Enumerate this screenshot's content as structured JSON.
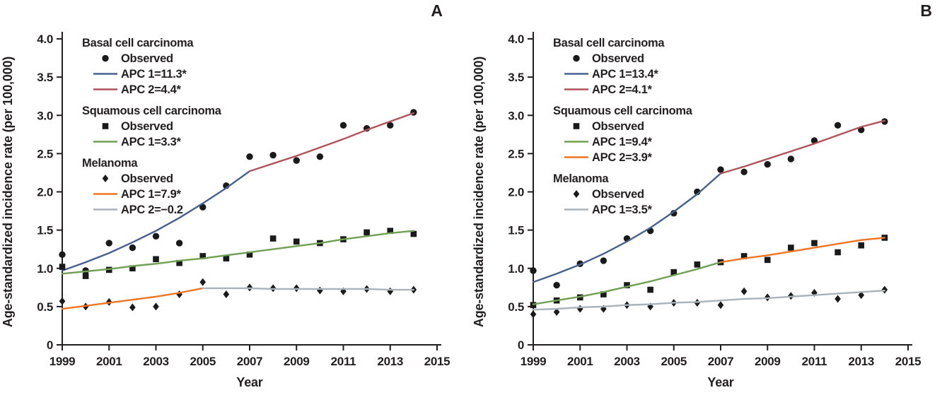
{
  "colors": {
    "text": "#231f20",
    "marker": "#1a1a1a",
    "bcc_apc1_blue": "#46618f",
    "bcc_apc2_red": "#b2525a",
    "scc_green": "#6fa053",
    "orange": "#ef7522",
    "gray": "#a9b3ba"
  },
  "chart_data": [
    {
      "type": "line",
      "panel_label": "A",
      "xlabel": "Year",
      "ylabel": "Age-standardized incidence rate (per 100,000)",
      "xlim": [
        1999,
        2015
      ],
      "ylim": [
        0,
        4.0
      ],
      "x_ticks": [
        1999,
        2001,
        2003,
        2005,
        2007,
        2009,
        2011,
        2013,
        2015
      ],
      "y_ticks": [
        0,
        0.5,
        1.0,
        1.5,
        2.0,
        2.5,
        3.0,
        3.5,
        4.0
      ],
      "grid": false,
      "legend_position": "top-left",
      "series": [
        {
          "name": "Basal cell carcinoma Observed",
          "type": "scatter",
          "marker": "circle",
          "color": "#1a1a1a",
          "x": [
            1999,
            2000,
            2001,
            2002,
            2003,
            2004,
            2005,
            2006,
            2007,
            2008,
            2009,
            2010,
            2011,
            2012,
            2013,
            2014
          ],
          "y": [
            1.18,
            0.97,
            1.33,
            1.27,
            1.42,
            1.33,
            1.8,
            2.08,
            2.46,
            2.48,
            2.41,
            2.46,
            2.87,
            2.83,
            2.87,
            3.04
          ]
        },
        {
          "name": "Basal cell carcinoma APC 1=11.3*",
          "type": "line",
          "color": "#46618f",
          "x": [
            1999,
            2000,
            2001,
            2002,
            2003,
            2004,
            2005,
            2006,
            2007
          ],
          "y": [
            0.97,
            1.08,
            1.2,
            1.34,
            1.49,
            1.66,
            1.85,
            2.05,
            2.27
          ]
        },
        {
          "name": "Basal cell carcinoma APC 2=4.4*",
          "type": "line",
          "color": "#b2525a",
          "x": [
            2007,
            2008,
            2009,
            2010,
            2011,
            2012,
            2013,
            2014
          ],
          "y": [
            2.27,
            2.37,
            2.47,
            2.58,
            2.69,
            2.81,
            2.92,
            3.03
          ]
        },
        {
          "name": "Squamous cell carcinoma Observed",
          "type": "scatter",
          "marker": "square",
          "color": "#1a1a1a",
          "x": [
            1999,
            2000,
            2001,
            2002,
            2003,
            2004,
            2005,
            2006,
            2007,
            2008,
            2009,
            2010,
            2011,
            2012,
            2013,
            2014
          ],
          "y": [
            1.02,
            0.9,
            0.98,
            1.0,
            1.12,
            1.07,
            1.16,
            1.13,
            1.18,
            1.39,
            1.35,
            1.33,
            1.38,
            1.47,
            1.49,
            1.45
          ]
        },
        {
          "name": "Squamous cell carcinoma APC 1=3.3*",
          "type": "line",
          "color": "#6fa053",
          "x": [
            1999,
            2000,
            2001,
            2002,
            2003,
            2004,
            2005,
            2006,
            2007,
            2008,
            2009,
            2010,
            2011,
            2012,
            2013,
            2014
          ],
          "y": [
            0.93,
            0.96,
            0.99,
            1.03,
            1.06,
            1.1,
            1.13,
            1.17,
            1.21,
            1.25,
            1.29,
            1.33,
            1.38,
            1.42,
            1.46,
            1.49
          ]
        },
        {
          "name": "Melanoma Observed",
          "type": "scatter",
          "marker": "diamond",
          "color": "#1a1a1a",
          "x": [
            1999,
            2000,
            2001,
            2002,
            2003,
            2004,
            2005,
            2006,
            2007,
            2008,
            2009,
            2010,
            2011,
            2012,
            2013,
            2014
          ],
          "y": [
            0.57,
            0.5,
            0.56,
            0.49,
            0.5,
            0.66,
            0.82,
            0.66,
            0.75,
            0.74,
            0.74,
            0.71,
            0.7,
            0.73,
            0.7,
            0.72
          ]
        },
        {
          "name": "Melanoma APC 1=7.9*",
          "type": "line",
          "color": "#ef7522",
          "x": [
            1999,
            2000,
            2001,
            2002,
            2003,
            2004,
            2005
          ],
          "y": [
            0.47,
            0.51,
            0.55,
            0.59,
            0.63,
            0.68,
            0.74
          ]
        },
        {
          "name": "Melanoma APC 2=−0.2",
          "type": "line",
          "color": "#a9b3ba",
          "x": [
            2005,
            2006,
            2007,
            2008,
            2009,
            2010,
            2011,
            2012,
            2013,
            2014
          ],
          "y": [
            0.74,
            0.74,
            0.74,
            0.73,
            0.73,
            0.73,
            0.73,
            0.73,
            0.72,
            0.72
          ]
        }
      ],
      "legend": [
        {
          "title": "Basal cell carcinoma",
          "items": [
            {
              "marker": "circle",
              "label": "Observed"
            },
            {
              "line": "#46618f",
              "label": "APC 1=11.3*"
            },
            {
              "line": "#b2525a",
              "label": "APC 2=4.4*"
            }
          ]
        },
        {
          "title": "Squamous cell carcinoma",
          "items": [
            {
              "marker": "square",
              "label": "Observed"
            },
            {
              "line": "#6fa053",
              "label": "APC 1=3.3*"
            }
          ]
        },
        {
          "title": "Melanoma",
          "items": [
            {
              "marker": "diamond",
              "label": "Observed"
            },
            {
              "line": "#ef7522",
              "label": "APC 1=7.9*"
            },
            {
              "line": "#a9b3ba",
              "label": "APC 2=−0.2"
            }
          ]
        }
      ]
    },
    {
      "type": "line",
      "panel_label": "B",
      "xlabel": "Year",
      "ylabel": "Age-standardized incidence rate (per 100,000)",
      "xlim": [
        1999,
        2015
      ],
      "ylim": [
        0,
        4.0
      ],
      "x_ticks": [
        1999,
        2001,
        2003,
        2005,
        2007,
        2009,
        2011,
        2013,
        2015
      ],
      "y_ticks": [
        0,
        0.5,
        1.0,
        1.5,
        2.0,
        2.5,
        3.0,
        3.5,
        4.0
      ],
      "grid": false,
      "legend_position": "top-left",
      "series": [
        {
          "name": "Basal cell carcinoma Observed",
          "type": "scatter",
          "marker": "circle",
          "color": "#1a1a1a",
          "x": [
            1999,
            2000,
            2001,
            2002,
            2003,
            2004,
            2005,
            2006,
            2007,
            2008,
            2009,
            2010,
            2011,
            2012,
            2013,
            2014
          ],
          "y": [
            0.97,
            0.78,
            1.06,
            1.1,
            1.39,
            1.49,
            1.72,
            2.0,
            2.29,
            2.26,
            2.36,
            2.43,
            2.67,
            2.87,
            2.81,
            2.92
          ]
        },
        {
          "name": "Basal cell carcinoma APC 1=13.4*",
          "type": "line",
          "color": "#46618f",
          "x": [
            1999,
            2000,
            2001,
            2002,
            2003,
            2004,
            2005,
            2006,
            2007
          ],
          "y": [
            0.82,
            0.93,
            1.05,
            1.19,
            1.35,
            1.53,
            1.74,
            1.97,
            2.24
          ]
        },
        {
          "name": "Basal cell carcinoma APC 2=4.1*",
          "type": "line",
          "color": "#b2525a",
          "x": [
            2007,
            2008,
            2009,
            2010,
            2011,
            2012,
            2013,
            2014
          ],
          "y": [
            2.24,
            2.33,
            2.43,
            2.53,
            2.63,
            2.74,
            2.85,
            2.93
          ]
        },
        {
          "name": "Squamous cell carcinoma Observed",
          "type": "scatter",
          "marker": "square",
          "color": "#1a1a1a",
          "x": [
            1999,
            2000,
            2001,
            2002,
            2003,
            2004,
            2005,
            2006,
            2007,
            2008,
            2009,
            2010,
            2011,
            2012,
            2013,
            2014
          ],
          "y": [
            0.52,
            0.58,
            0.62,
            0.66,
            0.78,
            0.72,
            0.95,
            1.05,
            1.08,
            1.16,
            1.11,
            1.27,
            1.33,
            1.21,
            1.3,
            1.4
          ]
        },
        {
          "name": "Squamous cell carcinoma APC 1=9.4*",
          "type": "line",
          "color": "#6fa053",
          "x": [
            1999,
            2000,
            2001,
            2002,
            2003,
            2004,
            2005,
            2006,
            2007
          ],
          "y": [
            0.53,
            0.58,
            0.63,
            0.69,
            0.76,
            0.83,
            0.91,
            0.99,
            1.08
          ]
        },
        {
          "name": "Squamous cell carcinoma APC 2=3.9*",
          "type": "line",
          "color": "#ef7522",
          "x": [
            2007,
            2008,
            2009,
            2010,
            2011,
            2012,
            2013,
            2014
          ],
          "y": [
            1.08,
            1.13,
            1.17,
            1.22,
            1.27,
            1.32,
            1.37,
            1.4
          ]
        },
        {
          "name": "Melanoma Observed",
          "type": "scatter",
          "marker": "diamond",
          "color": "#1a1a1a",
          "x": [
            1999,
            2000,
            2001,
            2002,
            2003,
            2004,
            2005,
            2006,
            2007,
            2008,
            2009,
            2010,
            2011,
            2012,
            2013,
            2014
          ],
          "y": [
            0.4,
            0.43,
            0.47,
            0.47,
            0.52,
            0.5,
            0.55,
            0.55,
            0.52,
            0.7,
            0.62,
            0.64,
            0.68,
            0.6,
            0.65,
            0.72
          ]
        },
        {
          "name": "Melanoma APC 1=3.5*",
          "type": "line",
          "color": "#a9b3ba",
          "x": [
            1999,
            2000,
            2001,
            2002,
            2003,
            2004,
            2005,
            2006,
            2007,
            2008,
            2009,
            2010,
            2011,
            2012,
            2013,
            2014
          ],
          "y": [
            0.46,
            0.47,
            0.49,
            0.5,
            0.52,
            0.53,
            0.55,
            0.56,
            0.58,
            0.6,
            0.61,
            0.63,
            0.65,
            0.67,
            0.69,
            0.71
          ]
        }
      ],
      "legend": [
        {
          "title": "Basal cell carcinoma",
          "items": [
            {
              "marker": "circle",
              "label": "Observed"
            },
            {
              "line": "#46618f",
              "label": "APC 1=13.4*"
            },
            {
              "line": "#b2525a",
              "label": "APC 2=4.1*"
            }
          ]
        },
        {
          "title": "Squamous cell carcinoma",
          "items": [
            {
              "marker": "square",
              "label": "Observed"
            },
            {
              "line": "#6fa053",
              "label": "APC 1=9.4*"
            },
            {
              "line": "#ef7522",
              "label": "APC 2=3.9*"
            }
          ]
        },
        {
          "title": "Melanoma",
          "items": [
            {
              "marker": "diamond",
              "label": "Observed"
            },
            {
              "line": "#a9b3ba",
              "label": "APC 1=3.5*"
            }
          ]
        }
      ]
    }
  ]
}
